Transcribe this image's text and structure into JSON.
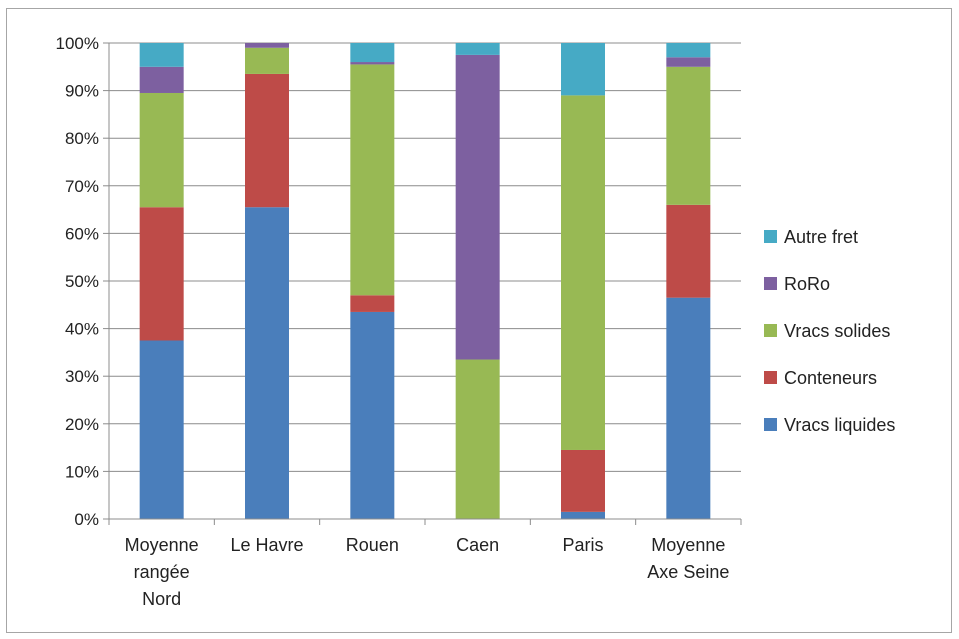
{
  "chart_data": {
    "type": "bar",
    "stacked": true,
    "percent": true,
    "title": "",
    "xlabel": "",
    "ylabel": "",
    "ylim": [
      0,
      100
    ],
    "grid": true,
    "legend_position": "right",
    "y_ticks": [
      "0%",
      "10%",
      "20%",
      "30%",
      "40%",
      "50%",
      "60%",
      "70%",
      "80%",
      "90%",
      "100%"
    ],
    "categories": [
      [
        "Moyenne",
        "rangée",
        "Nord"
      ],
      [
        "Le Havre"
      ],
      [
        "Rouen"
      ],
      [
        "Caen"
      ],
      [
        "Paris"
      ],
      [
        "Moyenne",
        "Axe Seine"
      ]
    ],
    "series": [
      {
        "name": "Vracs liquides",
        "color": "#4a7ebb",
        "values": [
          37.5,
          65.5,
          43.5,
          0,
          1.5,
          46.5
        ]
      },
      {
        "name": "Conteneurs",
        "color": "#be4b48",
        "values": [
          28.0,
          28.0,
          3.5,
          0,
          13.0,
          19.5
        ]
      },
      {
        "name": "Vracs solides",
        "color": "#98b954",
        "values": [
          24.0,
          5.5,
          48.5,
          33.5,
          74.5,
          29.0
        ]
      },
      {
        "name": "RoRo",
        "color": "#7d60a0",
        "values": [
          5.5,
          1.0,
          0.5,
          64.0,
          0,
          2.0
        ]
      },
      {
        "name": "Autre fret",
        "color": "#46aac5",
        "values": [
          5.0,
          0,
          4.0,
          2.5,
          11.0,
          3.0
        ]
      }
    ],
    "legend_order": [
      "Autre fret",
      "RoRo",
      "Vracs solides",
      "Conteneurs",
      "Vracs liquides"
    ]
  }
}
